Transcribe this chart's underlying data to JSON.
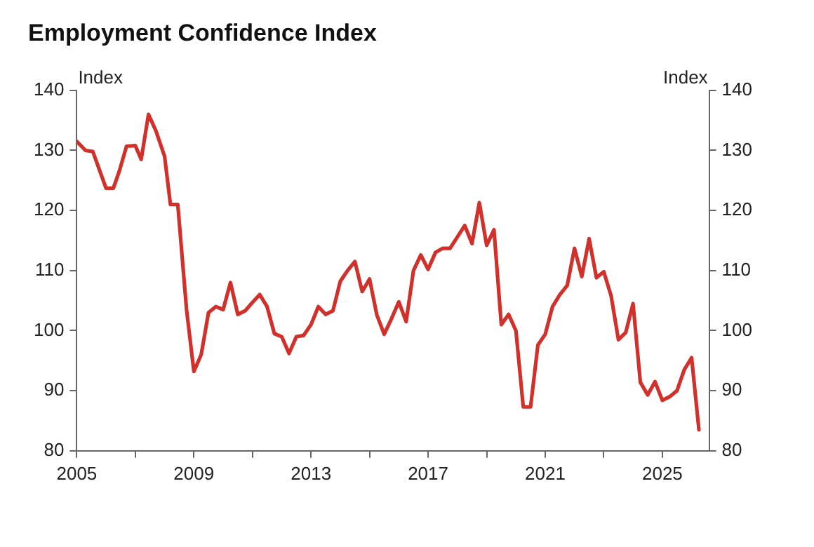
{
  "chart_data": {
    "type": "line",
    "title": "Employment Confidence Index",
    "ylabel": "Index",
    "y2label": "Index",
    "x": [
      2005,
      2005.3,
      2005.55,
      2006,
      2006.25,
      2006.45,
      2006.7,
      2007,
      2007.2,
      2007.45,
      2007.7,
      2008,
      2008.2,
      2008.45,
      2008.75,
      2009,
      2009.25,
      2009.5,
      2009.75,
      2010,
      2010.25,
      2010.5,
      2010.75,
      2011,
      2011.25,
      2011.5,
      2011.75,
      2012,
      2012.25,
      2012.5,
      2012.75,
      2013,
      2013.25,
      2013.5,
      2013.75,
      2014,
      2014.25,
      2014.5,
      2014.75,
      2015,
      2015.25,
      2015.5,
      2015.75,
      2016,
      2016.25,
      2016.5,
      2016.75,
      2017,
      2017.25,
      2017.5,
      2017.75,
      2018,
      2018.25,
      2018.5,
      2018.75,
      2019,
      2019.25,
      2019.5,
      2019.75,
      2020,
      2020.25,
      2020.5,
      2020.75,
      2021,
      2021.25,
      2021.5,
      2021.75,
      2022,
      2022.25,
      2022.5,
      2022.75,
      2023,
      2023.25,
      2023.5,
      2023.75,
      2024,
      2024.25,
      2024.5,
      2024.75,
      2025,
      2025.25,
      2025.5,
      2025.75,
      2026,
      2026.25
    ],
    "series": [
      {
        "color": "#d2302a",
        "values": [
          131.5,
          130,
          129.8,
          123.7,
          123.7,
          126.5,
          130.7,
          130.8,
          128.5,
          136,
          133.3,
          129,
          121,
          121,
          103.5,
          93.2,
          96,
          103,
          104,
          103.5,
          108,
          102.7,
          103.3,
          104.7,
          106,
          104,
          99.5,
          99,
          96.2,
          99,
          99.2,
          101,
          104,
          102.7,
          103.3,
          108.2,
          110,
          111.5,
          106.5,
          108.6,
          102.6,
          99.4,
          102,
          104.8,
          101.5,
          110,
          112.6,
          110.2,
          113,
          113.7,
          113.7,
          115.6,
          117.5,
          114.5,
          121.3,
          114.2,
          116.8,
          101,
          102.7,
          100,
          87.3,
          87.3,
          97.6,
          99.4,
          104,
          106,
          107.5,
          113.7,
          109,
          115.3,
          108.8,
          109.8,
          105.8,
          98.5,
          99.7,
          104.5,
          91.4,
          89.3,
          91.5,
          88.4,
          89,
          90,
          93.5,
          95.5,
          83.5
        ]
      }
    ],
    "xlim": [
      2005,
      2026.6
    ],
    "xticks": [
      2005,
      {
        "value": 2007,
        "label": null
      },
      2009,
      {
        "value": 2011,
        "label": null
      },
      2013,
      {
        "value": 2015,
        "label": null
      },
      2017,
      {
        "value": 2019,
        "label": null
      },
      2021,
      {
        "value": 2023,
        "label": null
      },
      2025
    ],
    "ylim": [
      80,
      140
    ],
    "yticks": [
      80,
      90,
      100,
      110,
      120,
      130,
      140
    ],
    "y2lim": [
      80,
      140
    ],
    "y2ticks": [
      80,
      90,
      100,
      110,
      120,
      130,
      140
    ],
    "grid": false,
    "legend": false,
    "line_style": "solid",
    "marker": "none"
  }
}
